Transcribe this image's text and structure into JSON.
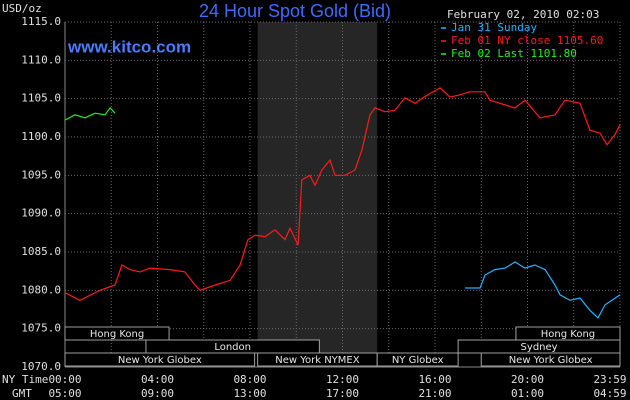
{
  "chart_data": {
    "type": "line",
    "title": "24 Hour Spot Gold (Bid)",
    "website": "www.kitco.com",
    "timestamp": "February 02, 2010 02:03",
    "y_unit_label": "USD/oz",
    "x_row_label": "NY Time",
    "gmt_row_label": "GMT",
    "background": "#000000",
    "grid": true,
    "xlim": [
      0,
      24
    ],
    "ylim": [
      1070,
      1115
    ],
    "yticks": [
      {
        "value": 1070,
        "label": "1070.0"
      },
      {
        "value": 1075,
        "label": "1075.0"
      },
      {
        "value": 1080,
        "label": "1080.0"
      },
      {
        "value": 1085,
        "label": "1085.0"
      },
      {
        "value": 1090,
        "label": "1090.0"
      },
      {
        "value": 1095,
        "label": "1095.0"
      },
      {
        "value": 1100,
        "label": "1100.0"
      },
      {
        "value": 1105,
        "label": "1105.0"
      },
      {
        "value": 1110,
        "label": "1110.0"
      },
      {
        "value": 1115,
        "label": "1115.0"
      }
    ],
    "xticks": [
      {
        "value": 0,
        "label": "00:00"
      },
      {
        "value": 4,
        "label": "04:00"
      },
      {
        "value": 8,
        "label": "08:00"
      },
      {
        "value": 12,
        "label": "12:00"
      },
      {
        "value": 16,
        "label": "16:00"
      },
      {
        "value": 20,
        "label": "20:00"
      },
      {
        "value": 23.98,
        "label": "23:59"
      }
    ],
    "gmt_ticks": [
      {
        "value": 0,
        "label": "05:00"
      },
      {
        "value": 4,
        "label": "09:00"
      },
      {
        "value": 8,
        "label": "13:00"
      },
      {
        "value": 12,
        "label": "17:00"
      },
      {
        "value": 16,
        "label": "21:00"
      },
      {
        "value": 20,
        "label": "01:00"
      },
      {
        "value": 23.98,
        "label": "04:59"
      }
    ],
    "xgrid": [
      0,
      2,
      4,
      6,
      8,
      10,
      12,
      14,
      16,
      18,
      20,
      22,
      24
    ],
    "highlight_x": [
      8.33,
      13.5
    ],
    "sessions": [
      [
        {
          "name": "Hong Kong",
          "start": 0,
          "end": 4.5
        },
        {
          "name": "Hong Kong",
          "start": 19.5,
          "end": 24
        }
      ],
      [
        {
          "name": "London",
          "start": 3.5,
          "end": 11
        },
        {
          "name": "Sydney",
          "start": 17,
          "end": 24
        }
      ],
      [
        {
          "name": "New York Globex",
          "start": 0,
          "end": 8.2
        },
        {
          "name": "New York NYMEX",
          "start": 8.33,
          "end": 13.5
        },
        {
          "name": "NY Globex",
          "start": 13.5,
          "end": 17
        },
        {
          "name": "New York Globex",
          "start": 18,
          "end": 24
        }
      ]
    ],
    "series": [
      {
        "name": "Jan 31 Sunday",
        "color": "#22b4ff",
        "x": [
          17.3,
          17.95,
          18.16,
          18.59,
          19.03,
          19.46,
          19.89,
          20.32,
          20.76,
          21.19,
          21.41,
          21.84,
          22.27,
          22.7,
          23.05,
          23.35,
          23.65,
          24.0
        ],
        "values": [
          1080.3,
          1080.3,
          1082.0,
          1082.7,
          1082.9,
          1083.7,
          1082.9,
          1083.3,
          1082.7,
          1080.7,
          1079.4,
          1078.7,
          1079.0,
          1077.4,
          1076.4,
          1078.1,
          1078.7,
          1079.4
        ]
      },
      {
        "name": "Feb 01 NY close 1105.60",
        "color": "#ff1a1a",
        "x": [
          0,
          0.65,
          1.51,
          2.16,
          2.46,
          2.81,
          3.24,
          3.68,
          4.54,
          5.19,
          5.62,
          5.84,
          6.49,
          7.14,
          7.57,
          7.91,
          8.22,
          8.65,
          9.08,
          9.51,
          9.73,
          10.08,
          10.24,
          10.59,
          10.81,
          11.11,
          11.46,
          11.68,
          12.11,
          12.54,
          12.84,
          13.19,
          13.41,
          13.84,
          14.27,
          14.7,
          15.14,
          15.57,
          16.22,
          16.65,
          17.08,
          17.51,
          18.16,
          18.38,
          18.81,
          19.46,
          19.89,
          20.54,
          21.19,
          21.62,
          22.27,
          22.7,
          23.14,
          23.44,
          23.78,
          24.0
        ],
        "values": [
          1079.7,
          1078.7,
          1080.0,
          1080.7,
          1083.3,
          1082.7,
          1082.4,
          1082.9,
          1082.7,
          1082.4,
          1080.7,
          1080.0,
          1080.7,
          1081.3,
          1083.3,
          1086.6,
          1087.2,
          1087.0,
          1087.9,
          1086.6,
          1088.1,
          1085.9,
          1094.4,
          1095.0,
          1093.7,
          1095.7,
          1097.0,
          1095.0,
          1095.0,
          1095.7,
          1098.3,
          1102.9,
          1103.8,
          1103.3,
          1103.5,
          1105.1,
          1104.4,
          1105.3,
          1106.4,
          1105.2,
          1105.5,
          1105.9,
          1105.9,
          1104.8,
          1104.4,
          1103.8,
          1104.8,
          1102.5,
          1102.9,
          1104.8,
          1104.4,
          1100.9,
          1100.5,
          1099.0,
          1100.3,
          1101.6
        ]
      },
      {
        "name": "Feb 02 Last 1101.80",
        "color": "#22ee22",
        "x": [
          0,
          0.43,
          0.86,
          1.3,
          1.73,
          1.95,
          2.16
        ],
        "values": [
          1102.2,
          1102.9,
          1102.5,
          1103.1,
          1102.9,
          1103.8,
          1103.1
        ]
      }
    ]
  }
}
